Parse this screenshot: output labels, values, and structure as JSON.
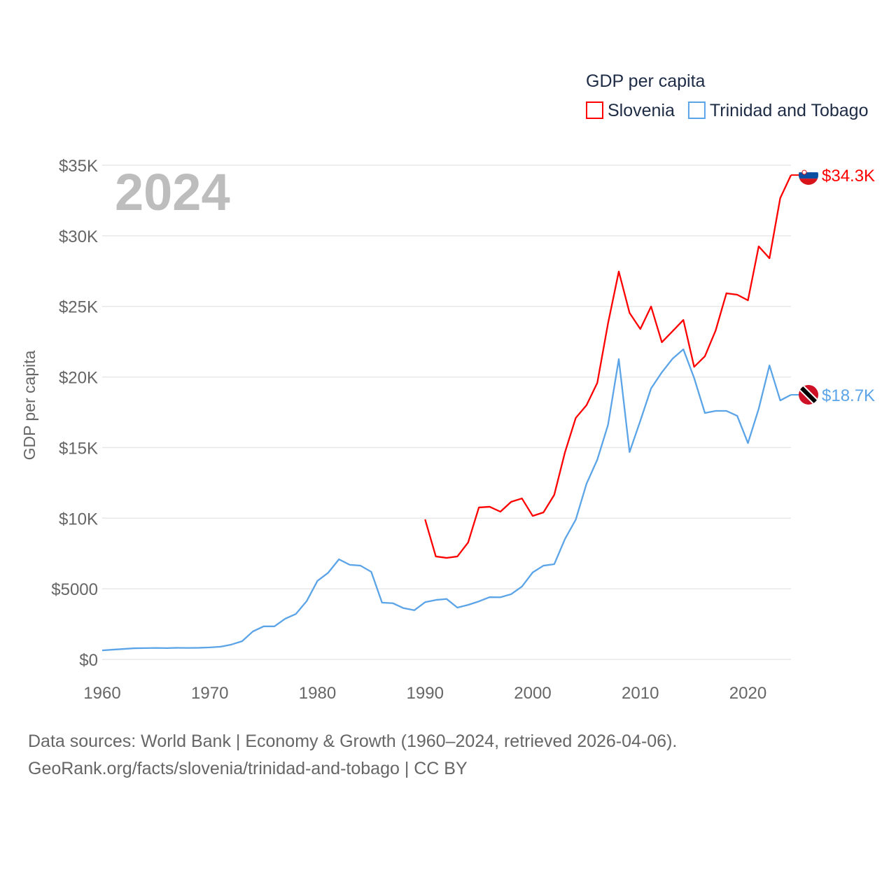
{
  "chart_data": {
    "type": "line",
    "title": "GDP per capita",
    "ylabel": "GDP per capita",
    "xlabel": "",
    "year_label": "2024",
    "xlim": [
      1960,
      2024
    ],
    "ylim": [
      0,
      35000
    ],
    "x_ticks": [
      1960,
      1970,
      1980,
      1990,
      2000,
      2010,
      2020
    ],
    "y_ticks": [
      {
        "v": 0,
        "label": "$0"
      },
      {
        "v": 5000,
        "label": "$5000"
      },
      {
        "v": 10000,
        "label": "$10K"
      },
      {
        "v": 15000,
        "label": "$15K"
      },
      {
        "v": 20000,
        "label": "$20K"
      },
      {
        "v": 25000,
        "label": "$25K"
      },
      {
        "v": 30000,
        "label": "$30K"
      },
      {
        "v": 35000,
        "label": "$35K"
      }
    ],
    "grid": true,
    "legend_placement": "top-right",
    "series": [
      {
        "name": "Slovenia",
        "color": "#ff0000",
        "end_label": "$34.3K",
        "flag": "slovenia-flag",
        "start_year": 1990,
        "values": [
          9920,
          7290,
          7190,
          7290,
          8280,
          10760,
          10810,
          10460,
          11160,
          11400,
          10160,
          10410,
          11650,
          14670,
          17100,
          18000,
          19580,
          23800,
          27470,
          24540,
          23400,
          24990,
          22460,
          23250,
          24040,
          20720,
          21470,
          23300,
          25930,
          25830,
          25430,
          29250,
          28410,
          32670,
          34300
        ]
      },
      {
        "name": "Trinidad and Tobago",
        "color": "#5ba4e8",
        "end_label": "$18.7K",
        "flag": "trinidad-flag",
        "start_year": 1960,
        "values": [
          640,
          690,
          740,
          790,
          800,
          810,
          800,
          820,
          810,
          820,
          850,
          900,
          1050,
          1290,
          1980,
          2340,
          2340,
          2880,
          3220,
          4130,
          5560,
          6140,
          7090,
          6700,
          6640,
          6200,
          4020,
          3980,
          3630,
          3480,
          4050,
          4210,
          4280,
          3670,
          3860,
          4110,
          4410,
          4400,
          4620,
          5160,
          6160,
          6640,
          6740,
          8530,
          9900,
          12440,
          14140,
          16610,
          21270,
          14680,
          16900,
          19190,
          20330,
          21300,
          21960,
          19930,
          17450,
          17600,
          17600,
          17250,
          15320,
          17750,
          20820,
          18340,
          18740
        ]
      }
    ]
  },
  "footer": {
    "line1": "Data sources: World Bank | Economy & Growth (1960–2024, retrieved 2026-04-06).",
    "line2": "GeoRank.org/facts/slovenia/trinidad-and-tobago | CC BY"
  }
}
